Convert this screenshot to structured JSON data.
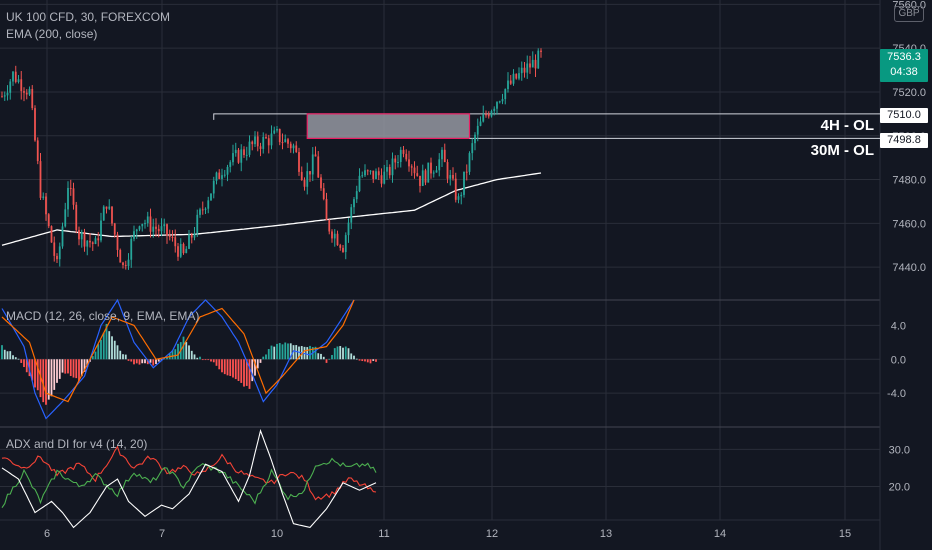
{
  "symbol_line": "UK 100 CFD, 30, FOREXCOM",
  "ema_line": "EMA (200, close)",
  "macd_line": "MACD (12, 26, close, 9, EMA, EMA)",
  "adx_line": "ADX and DI for v4 (14, 20)",
  "currency": "GBP",
  "last_price": "7536.3",
  "countdown": "04:38",
  "colors": {
    "bg": "#131722",
    "up": "#26a69a",
    "down": "#ef5350",
    "grid": "#2a2e39",
    "zone": "#9598a1",
    "zone_border": "#e91e63",
    "ema": "#ffffff",
    "macd": "#2962ff",
    "signal": "#ff6d00",
    "di_plus": "#4caf50",
    "di_minus": "#f44336",
    "adx": "#ffffff"
  },
  "levels": [
    {
      "label": "4H - OL",
      "price": "7510.0"
    },
    {
      "label": "30M - OL",
      "price": "7498.8"
    }
  ],
  "chart_data": [
    {
      "type": "candlestick",
      "title": "UK 100 CFD, 30, FOREXCOM",
      "x_ticks": [
        "6",
        "7",
        "10",
        "11",
        "12",
        "13",
        "14",
        "15"
      ],
      "y_ticks": [
        "7560.0",
        "7540.0",
        "7520.0",
        "7500.0",
        "7480.0",
        "7460.0",
        "7440.0"
      ],
      "ylim": [
        7425,
        7562
      ],
      "ohlc_keyframes": [
        [
          0,
          7518
        ],
        [
          4,
          7528
        ],
        [
          10,
          7520
        ],
        [
          14,
          7475
        ],
        [
          20,
          7440
        ],
        [
          24,
          7478
        ],
        [
          28,
          7455
        ],
        [
          34,
          7450
        ],
        [
          38,
          7470
        ],
        [
          44,
          7440
        ],
        [
          50,
          7462
        ],
        [
          60,
          7455
        ],
        [
          66,
          7445
        ],
        [
          74,
          7470
        ],
        [
          80,
          7485
        ],
        [
          90,
          7495
        ],
        [
          100,
          7500
        ],
        [
          106,
          7495
        ],
        [
          110,
          7480
        ],
        [
          114,
          7490
        ],
        [
          118,
          7460
        ],
        [
          124,
          7450
        ],
        [
          130,
          7482
        ],
        [
          140,
          7482
        ],
        [
          146,
          7495
        ],
        [
          152,
          7480
        ],
        [
          160,
          7490
        ],
        [
          166,
          7470
        ],
        [
          172,
          7500
        ],
        [
          176,
          7510
        ],
        [
          182,
          7520
        ],
        [
          190,
          7530
        ],
        [
          196,
          7536
        ]
      ],
      "ema_points": [
        [
          0,
          7450
        ],
        [
          20,
          7457
        ],
        [
          40,
          7454
        ],
        [
          70,
          7455
        ],
        [
          100,
          7459
        ],
        [
          120,
          7462
        ],
        [
          150,
          7466
        ],
        [
          165,
          7475
        ],
        [
          180,
          7480
        ],
        [
          196,
          7483
        ]
      ],
      "zone": {
        "top": 7510.0,
        "bottom": 7498.8,
        "start_candle": 111,
        "end_candle": 170
      },
      "zone_line": {
        "price": 7510,
        "start_candle": 77
      },
      "grid": "on"
    },
    {
      "type": "bar",
      "title": "MACD (12, 26, close, 9, EMA, EMA)",
      "y_ticks": [
        "4.0",
        "0.0",
        "-4.0"
      ],
      "ylim": [
        -8,
        7
      ],
      "hist_keyframes": [
        [
          0,
          1.5
        ],
        [
          5,
          0.4
        ],
        [
          10,
          -2
        ],
        [
          16,
          -5.5
        ],
        [
          22,
          -1.5
        ],
        [
          28,
          -2.5
        ],
        [
          34,
          1
        ],
        [
          38,
          4
        ],
        [
          42,
          1.5
        ],
        [
          47,
          -0.4
        ],
        [
          55,
          -0.6
        ],
        [
          60,
          0.2
        ],
        [
          66,
          2.5
        ],
        [
          70,
          0.4
        ],
        [
          76,
          -0.2
        ],
        [
          80,
          -1.4
        ],
        [
          90,
          -3.5
        ],
        [
          94,
          -0.3
        ],
        [
          98,
          1.6
        ],
        [
          104,
          1.9
        ],
        [
          110,
          1.5
        ],
        [
          114,
          1.3
        ],
        [
          118,
          -0.3
        ],
        [
          122,
          1.7
        ],
        [
          126,
          1.2
        ],
        [
          130,
          -0.2
        ],
        [
          134,
          -0.3
        ]
      ],
      "macd_keyframes": [
        [
          0,
          6
        ],
        [
          8,
          1.5
        ],
        [
          12,
          -4
        ],
        [
          16,
          -7
        ],
        [
          22,
          -5
        ],
        [
          30,
          -2
        ],
        [
          36,
          4
        ],
        [
          42,
          7
        ],
        [
          48,
          2
        ],
        [
          55,
          -1
        ],
        [
          62,
          1
        ],
        [
          68,
          5
        ],
        [
          74,
          7
        ],
        [
          80,
          5
        ],
        [
          86,
          2
        ],
        [
          90,
          -1
        ],
        [
          95,
          -5
        ],
        [
          100,
          -3
        ],
        [
          106,
          1
        ],
        [
          112,
          0.5
        ],
        [
          118,
          2
        ],
        [
          124,
          5
        ],
        [
          128,
          7
        ]
      ],
      "signal_keyframes": [
        [
          0,
          5
        ],
        [
          10,
          2
        ],
        [
          16,
          -4
        ],
        [
          24,
          -5
        ],
        [
          32,
          0
        ],
        [
          40,
          5
        ],
        [
          48,
          4
        ],
        [
          56,
          0
        ],
        [
          64,
          0.5
        ],
        [
          72,
          5
        ],
        [
          80,
          6
        ],
        [
          88,
          3
        ],
        [
          96,
          -4
        ],
        [
          102,
          -2
        ],
        [
          110,
          1
        ],
        [
          118,
          1.5
        ],
        [
          124,
          4
        ],
        [
          128,
          7
        ]
      ]
    },
    {
      "type": "line",
      "title": "ADX and DI for v4 (14, 20)",
      "y_ticks": [
        "30.0",
        "20.0"
      ],
      "ylim": [
        11,
        36
      ],
      "series": [
        {
          "keyframes": [
            [
              0,
              28
            ],
            [
              8,
              25
            ],
            [
              14,
              28
            ],
            [
              20,
              23
            ],
            [
              28,
              26
            ],
            [
              34,
              22
            ],
            [
              42,
              30
            ],
            [
              48,
              25
            ],
            [
              54,
              28
            ],
            [
              60,
              24
            ],
            [
              66,
              25
            ],
            [
              72,
              23
            ],
            [
              80,
              28
            ],
            [
              86,
              24
            ],
            [
              92,
              22
            ],
            [
              98,
              21
            ],
            [
              104,
              24
            ],
            [
              110,
              22
            ],
            [
              114,
              17
            ],
            [
              120,
              18
            ],
            [
              126,
              22
            ],
            [
              132,
              20
            ],
            [
              136,
              18
            ]
          ]
        },
        {
          "keyframes": [
            [
              0,
              15
            ],
            [
              8,
              24
            ],
            [
              14,
              16
            ],
            [
              20,
              24
            ],
            [
              28,
              20
            ],
            [
              34,
              23
            ],
            [
              42,
              18
            ],
            [
              48,
              24
            ],
            [
              54,
              21
            ],
            [
              60,
              25
            ],
            [
              66,
              20
            ],
            [
              72,
              26
            ],
            [
              80,
              24
            ],
            [
              86,
              20
            ],
            [
              92,
              16
            ],
            [
              98,
              24
            ],
            [
              104,
              17
            ],
            [
              110,
              19
            ],
            [
              114,
              26
            ],
            [
              120,
              27
            ],
            [
              126,
              25
            ],
            [
              132,
              26
            ],
            [
              136,
              24
            ]
          ]
        },
        {
          "keyframes": [
            [
              0,
              25
            ],
            [
              6,
              22
            ],
            [
              12,
              13
            ],
            [
              18,
              16
            ],
            [
              22,
              13
            ],
            [
              26,
              9
            ],
            [
              32,
              13
            ],
            [
              38,
              20
            ],
            [
              42,
              22
            ],
            [
              46,
              16
            ],
            [
              52,
              12
            ],
            [
              58,
              15
            ],
            [
              62,
              14
            ],
            [
              68,
              18
            ],
            [
              74,
              26
            ],
            [
              80,
              24
            ],
            [
              86,
              16
            ],
            [
              90,
              23
            ],
            [
              94,
              35
            ],
            [
              98,
              27
            ],
            [
              102,
              18
            ],
            [
              106,
              10
            ],
            [
              112,
              9
            ],
            [
              118,
              14
            ],
            [
              124,
              21
            ],
            [
              130,
              19
            ],
            [
              136,
              21
            ]
          ]
        }
      ]
    }
  ]
}
